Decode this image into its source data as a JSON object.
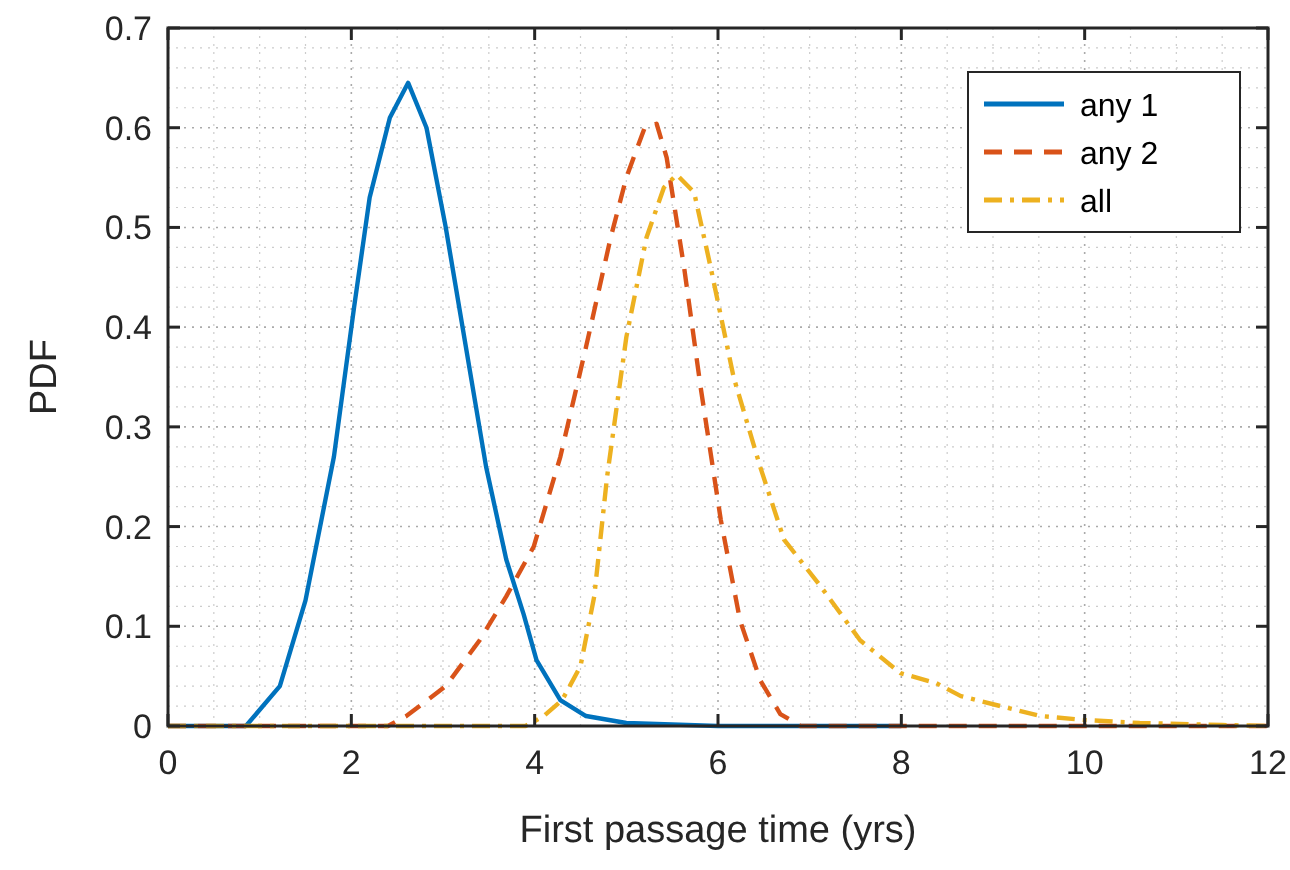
{
  "chart_data": {
    "type": "line",
    "xlabel": "First passage time (yrs)",
    "ylabel": "PDF",
    "xlim": [
      0,
      12
    ],
    "ylim": [
      0,
      0.7
    ],
    "xticks": [
      0,
      2,
      4,
      6,
      8,
      10,
      12
    ],
    "yticks": [
      0,
      0.1,
      0.2,
      0.3,
      0.4,
      0.5,
      0.6,
      0.7
    ],
    "grid": true,
    "legend": "top right",
    "marker": "none",
    "series": [
      {
        "name": "any 1",
        "color": "#0072bd",
        "line_style": "solid",
        "x": [
          0,
          0.85,
          1.22,
          1.5,
          1.81,
          2.03,
          2.2,
          2.42,
          2.62,
          2.82,
          3.03,
          3.25,
          3.47,
          3.69,
          3.88,
          4.02,
          4.28,
          4.56,
          5,
          6,
          8
        ],
        "values": [
          0,
          0,
          0.04,
          0.126,
          0.27,
          0.42,
          0.53,
          0.61,
          0.645,
          0.6,
          0.5,
          0.38,
          0.26,
          0.167,
          0.112,
          0.066,
          0.026,
          0.01,
          0.003,
          0,
          0
        ]
      },
      {
        "name": "any 2",
        "color": "#d95319",
        "line_style": "dashed",
        "x": [
          0,
          2.4,
          2.6,
          3.03,
          3.4,
          3.69,
          3.99,
          4.28,
          4.56,
          4.83,
          5,
          5.2,
          5.33,
          5.44,
          5.63,
          5.81,
          6.03,
          6.24,
          6.46,
          6.68,
          6.9,
          10,
          12
        ],
        "values": [
          0,
          0,
          0.01,
          0.04,
          0.086,
          0.13,
          0.18,
          0.27,
          0.38,
          0.49,
          0.55,
          0.6,
          0.604,
          0.57,
          0.46,
          0.34,
          0.207,
          0.106,
          0.046,
          0.012,
          0,
          0,
          0
        ]
      },
      {
        "name": "all",
        "color": "#edb120",
        "line_style": "dashdot",
        "x": [
          0,
          3.9,
          4.1,
          4.3,
          4.5,
          4.65,
          4.79,
          5,
          5.22,
          5.41,
          5.55,
          5.74,
          5.92,
          6.17,
          6.46,
          6.72,
          7.12,
          7.55,
          7.99,
          8.38,
          8.65,
          9.08,
          9.52,
          10,
          10.6,
          11.5,
          12
        ],
        "values": [
          0,
          0,
          0.01,
          0.026,
          0.06,
          0.13,
          0.25,
          0.39,
          0.49,
          0.54,
          0.553,
          0.535,
          0.46,
          0.35,
          0.26,
          0.187,
          0.14,
          0.086,
          0.053,
          0.043,
          0.03,
          0.02,
          0.01,
          0.006,
          0.003,
          0.001,
          0
        ]
      }
    ]
  }
}
